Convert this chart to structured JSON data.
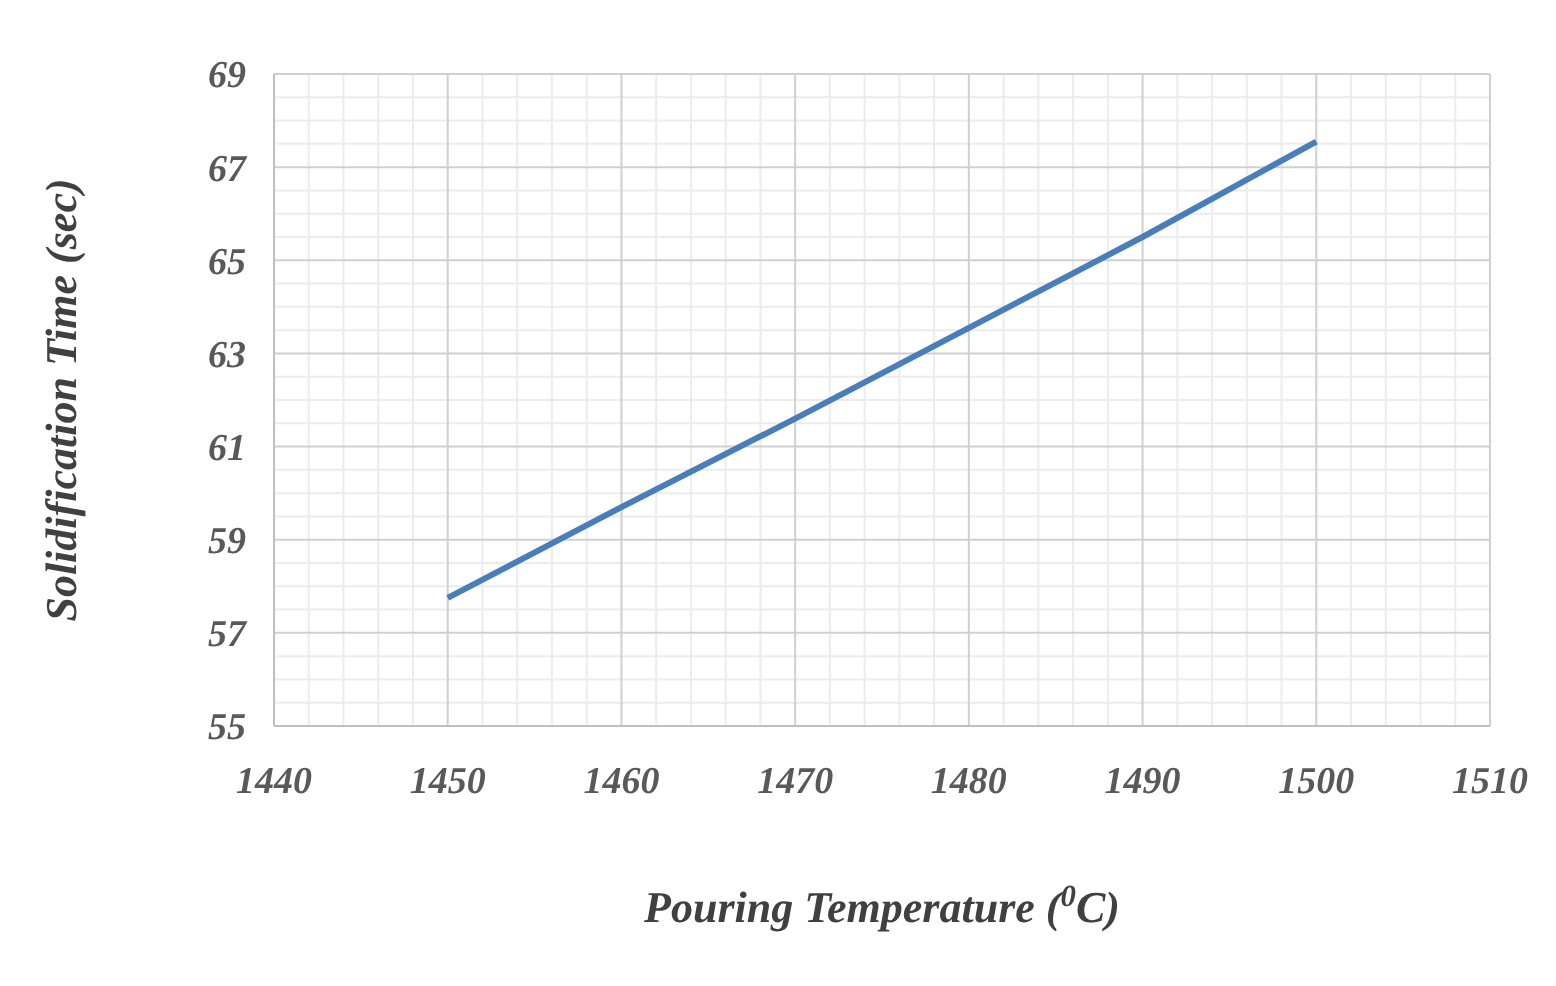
{
  "chart_data": {
    "type": "line",
    "xlabel": "Pouring Temperature ($^{0}$C)",
    "ylabel": "Solidification Time (sec)",
    "x": [
      1450,
      1460,
      1470,
      1480,
      1490,
      1500
    ],
    "series": [
      {
        "color": "#4a7ebb",
        "values": [
          57.75,
          59.7,
          61.6,
          63.55,
          65.5,
          67.55
        ]
      }
    ],
    "xlim": [
      1440,
      1510
    ],
    "xticks": [
      1440,
      1450,
      1460,
      1470,
      1480,
      1490,
      1500,
      1510
    ],
    "ylim": [
      55,
      69
    ],
    "yticks": [
      55,
      57,
      59,
      61,
      63,
      65,
      67,
      69
    ],
    "grid": true,
    "legend": false,
    "marker": "none",
    "line_style": "solid"
  }
}
